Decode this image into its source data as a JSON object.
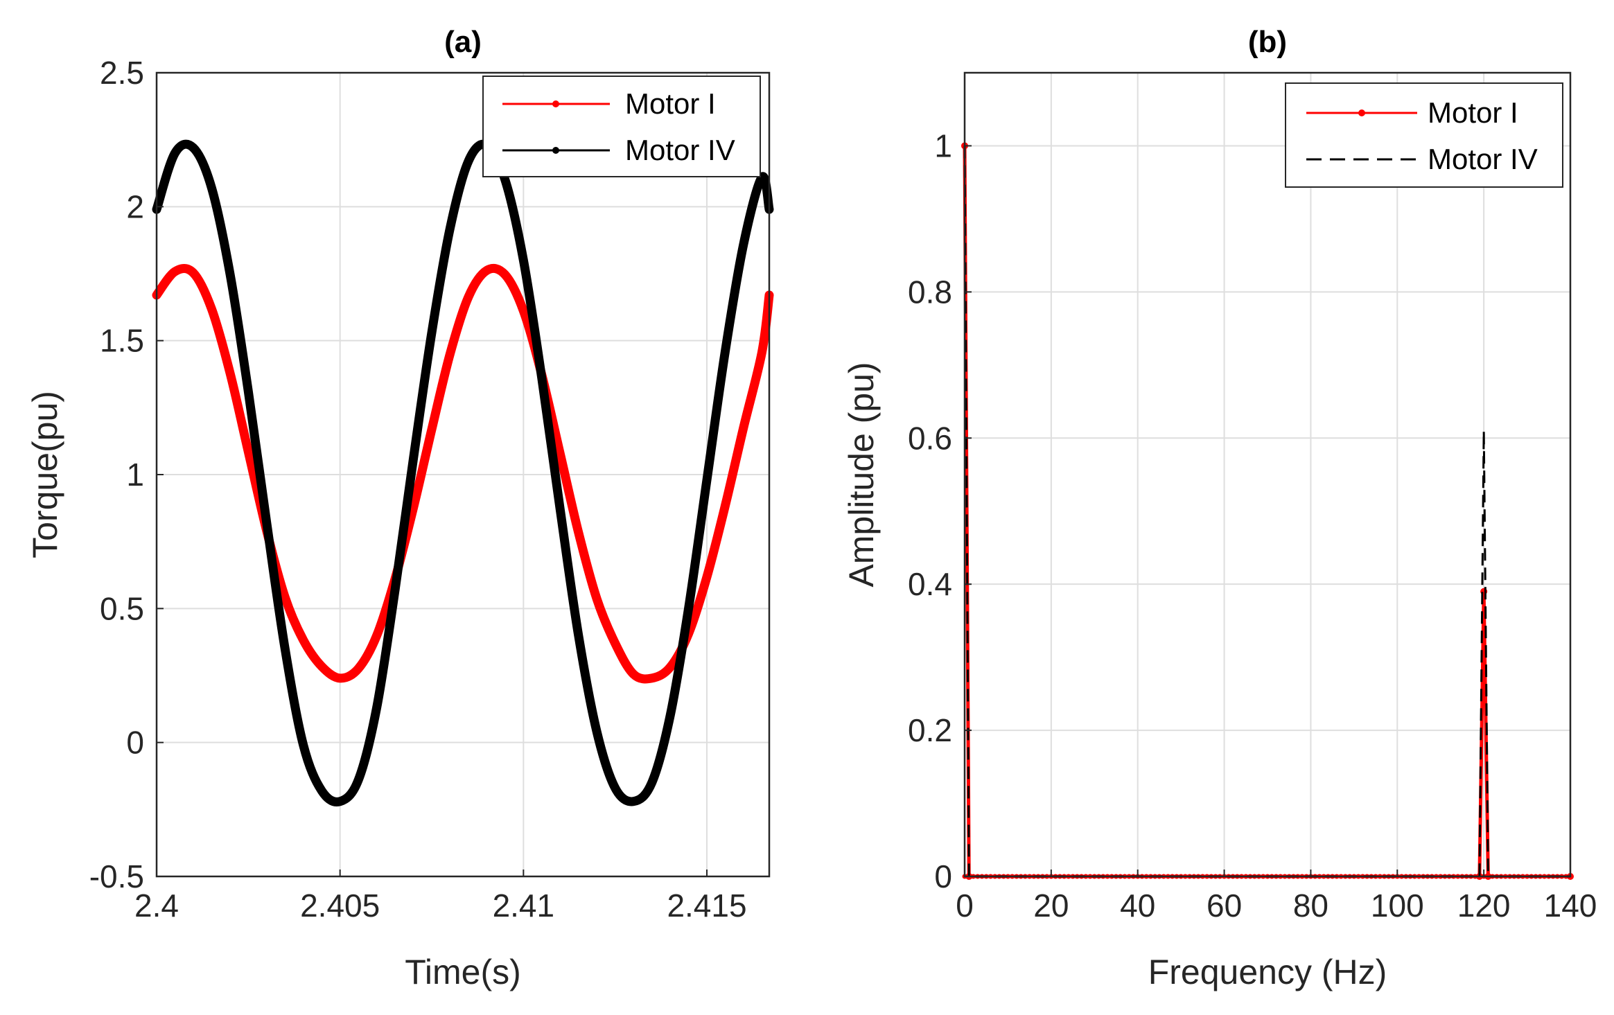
{
  "chart_data": [
    {
      "type": "line",
      "title": "(a)",
      "xlabel": "Time(s)",
      "ylabel": "Torque(pu)",
      "xlim": [
        2.4,
        2.4167
      ],
      "ylim": [
        -0.5,
        2.5
      ],
      "xticks": [
        2.4,
        2.405,
        2.41,
        2.415
      ],
      "xtick_labels": [
        "2.4",
        "2.405",
        "2.41",
        "2.415"
      ],
      "yticks": [
        -0.5,
        0,
        0.5,
        1,
        1.5,
        2,
        2.5
      ],
      "ytick_labels": [
        "-0.5",
        "0",
        "0.5",
        "1",
        "1.5",
        "2",
        "2.5"
      ],
      "grid": true,
      "legend_position": "top-right",
      "series": [
        {
          "name": "Motor I",
          "color": "#ff0000",
          "x": [
            2.4,
            2.4005,
            2.401,
            2.4015,
            2.402,
            2.4025,
            2.403,
            2.4035,
            2.404,
            2.4045,
            2.405,
            2.4055,
            2.406,
            2.4065,
            2.407,
            2.4075,
            2.408,
            2.4085,
            2.409,
            2.4095,
            2.41,
            2.4105,
            2.411,
            2.4115,
            2.412,
            2.4125,
            2.413,
            2.4135,
            2.414,
            2.4145,
            2.415,
            2.4155,
            2.416,
            2.4165,
            2.4167
          ],
          "y": [
            1.67,
            1.758,
            1.753,
            1.618,
            1.38,
            1.085,
            0.79,
            0.542,
            0.382,
            0.284,
            0.24,
            0.276,
            0.399,
            0.611,
            0.876,
            1.169,
            1.451,
            1.663,
            1.762,
            1.746,
            1.611,
            1.372,
            1.078,
            0.784,
            0.536,
            0.37,
            0.255,
            0.24,
            0.281,
            0.406,
            0.618,
            0.884,
            1.176,
            1.456,
            1.67
          ]
        },
        {
          "name": "Motor IV",
          "color": "#000000",
          "x": [
            2.4,
            2.4005,
            2.401,
            2.4015,
            2.402,
            2.4025,
            2.403,
            2.4035,
            2.404,
            2.4045,
            2.405,
            2.4055,
            2.406,
            2.4065,
            2.407,
            2.4075,
            2.408,
            2.4085,
            2.409,
            2.4095,
            2.41,
            2.4105,
            2.411,
            2.4115,
            2.412,
            2.4125,
            2.413,
            2.4135,
            2.414,
            2.4145,
            2.415,
            2.4155,
            2.416,
            2.4165,
            2.4167
          ],
          "y": [
            1.99,
            2.2,
            2.22,
            2.07,
            1.75,
            1.31,
            0.82,
            0.35,
            -0.01,
            -0.18,
            -0.22,
            -0.14,
            0.13,
            0.57,
            1.06,
            1.53,
            1.92,
            2.17,
            2.23,
            2.1,
            1.8,
            1.36,
            0.87,
            0.4,
            0.04,
            -0.17,
            -0.22,
            -0.15,
            0.1,
            0.5,
            0.98,
            1.46,
            1.86,
            2.11,
            1.99
          ]
        }
      ]
    },
    {
      "type": "line",
      "title": "(b)",
      "xlabel": "Frequency (Hz)",
      "ylabel": "Amplitude (pu)",
      "xlim": [
        0,
        140
      ],
      "ylim": [
        0,
        1.1
      ],
      "xticks": [
        0,
        20,
        40,
        60,
        80,
        100,
        120,
        140
      ],
      "xtick_labels": [
        "0",
        "20",
        "40",
        "60",
        "80",
        "100",
        "120",
        "140"
      ],
      "yticks": [
        0,
        0.2,
        0.4,
        0.6,
        0.8,
        1
      ],
      "ytick_labels": [
        "0",
        "0.2",
        "0.4",
        "0.6",
        "0.8",
        "1"
      ],
      "grid": true,
      "legend_position": "top-right",
      "series": [
        {
          "name": "Motor I",
          "color": "#ff0000",
          "line_style": "solid-with-markers",
          "x": [
            0,
            1,
            119,
            120,
            121,
            140
          ],
          "y": [
            1.0,
            0,
            0,
            0.39,
            0,
            0
          ]
        },
        {
          "name": "Motor IV",
          "color": "#000000",
          "line_style": "dashed",
          "x": [
            0,
            1,
            119,
            120,
            121,
            140
          ],
          "y": [
            1.0,
            0,
            0,
            0.61,
            0,
            0
          ]
        }
      ]
    }
  ]
}
